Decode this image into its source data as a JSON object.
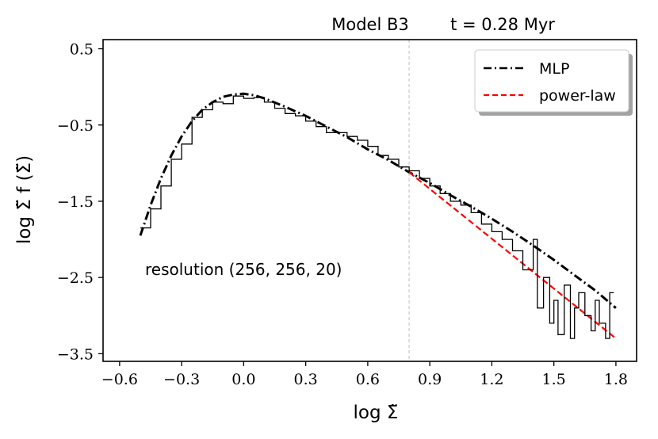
{
  "chart_data": {
    "type": "line",
    "title_left": "Model B3",
    "title_right": "t = 0.28 Myr",
    "xlabel": "log Σ̃",
    "ylabel": "log Σ̃ f (Σ̃)",
    "xlim": [
      -0.68,
      1.9
    ],
    "ylim": [
      -3.6,
      0.62
    ],
    "xticks": [
      -0.6,
      -0.3,
      0.0,
      0.3,
      0.6,
      0.9,
      1.2,
      1.5,
      1.8
    ],
    "xtick_labels": [
      "−0.6",
      "−0.3",
      "0.0",
      "0.3",
      "0.6",
      "0.9",
      "1.2",
      "1.5",
      "1.8"
    ],
    "yticks": [
      0.5,
      -0.5,
      -1.5,
      -2.5,
      -3.5
    ],
    "ytick_labels": [
      "0.5",
      "−0.5",
      "−1.5",
      "−2.5",
      "−3.5"
    ],
    "annotation": "resolution (256, 256, 20)",
    "vline_x": 0.8,
    "legend": {
      "position": "top-right",
      "entries": [
        "MLP",
        "power-law"
      ]
    },
    "series": [
      {
        "name": "MLP",
        "style": "dash-dot",
        "color": "#000000",
        "x": [
          -0.5,
          -0.45,
          -0.4,
          -0.35,
          -0.3,
          -0.25,
          -0.2,
          -0.15,
          -0.1,
          -0.05,
          0.0,
          0.05,
          0.1,
          0.2,
          0.3,
          0.4,
          0.5,
          0.6,
          0.7,
          0.8,
          0.9,
          1.0,
          1.1,
          1.2,
          1.3,
          1.4,
          1.5,
          1.6,
          1.7,
          1.8
        ],
        "y": [
          -1.95,
          -1.55,
          -1.2,
          -0.9,
          -0.65,
          -0.45,
          -0.3,
          -0.2,
          -0.13,
          -0.1,
          -0.09,
          -0.11,
          -0.15,
          -0.26,
          -0.38,
          -0.52,
          -0.66,
          -0.82,
          -0.96,
          -1.12,
          -1.26,
          -1.42,
          -1.57,
          -1.73,
          -1.9,
          -2.08,
          -2.27,
          -2.47,
          -2.67,
          -2.9
        ]
      },
      {
        "name": "power-law",
        "style": "dashed",
        "color": "#ff0000",
        "x": [
          0.8,
          1.8
        ],
        "y": [
          -1.12,
          -3.3
        ]
      },
      {
        "name": "histogram",
        "style": "step",
        "color": "#000000",
        "x": [
          -0.5,
          -0.45,
          -0.4,
          -0.35,
          -0.3,
          -0.25,
          -0.2,
          -0.15,
          -0.1,
          -0.05,
          0.0,
          0.05,
          0.1,
          0.15,
          0.2,
          0.25,
          0.3,
          0.35,
          0.4,
          0.45,
          0.5,
          0.55,
          0.6,
          0.65,
          0.7,
          0.75,
          0.8,
          0.85,
          0.9,
          0.95,
          1.0,
          1.05,
          1.1,
          1.15,
          1.2,
          1.25,
          1.3,
          1.35,
          1.4,
          1.42,
          1.45,
          1.48,
          1.5,
          1.52,
          1.55,
          1.58,
          1.6,
          1.62,
          1.65,
          1.68,
          1.7,
          1.72,
          1.75,
          1.77
        ],
        "y": [
          -1.85,
          -1.6,
          -1.3,
          -0.95,
          -0.75,
          -0.4,
          -0.3,
          -0.2,
          -0.22,
          -0.12,
          -0.15,
          -0.14,
          -0.2,
          -0.28,
          -0.35,
          -0.38,
          -0.45,
          -0.52,
          -0.6,
          -0.6,
          -0.65,
          -0.7,
          -0.78,
          -0.9,
          -0.95,
          -1.05,
          -1.1,
          -1.2,
          -1.3,
          -1.4,
          -1.5,
          -1.55,
          -1.65,
          -1.8,
          -1.9,
          -2.0,
          -2.15,
          -2.4,
          -2.0,
          -2.9,
          -2.5,
          -3.1,
          -2.8,
          -3.25,
          -2.6,
          -3.3,
          -2.9,
          -2.7,
          -3.0,
          -3.2,
          -2.8,
          -3.1,
          -3.3,
          -2.7
        ]
      }
    ]
  }
}
